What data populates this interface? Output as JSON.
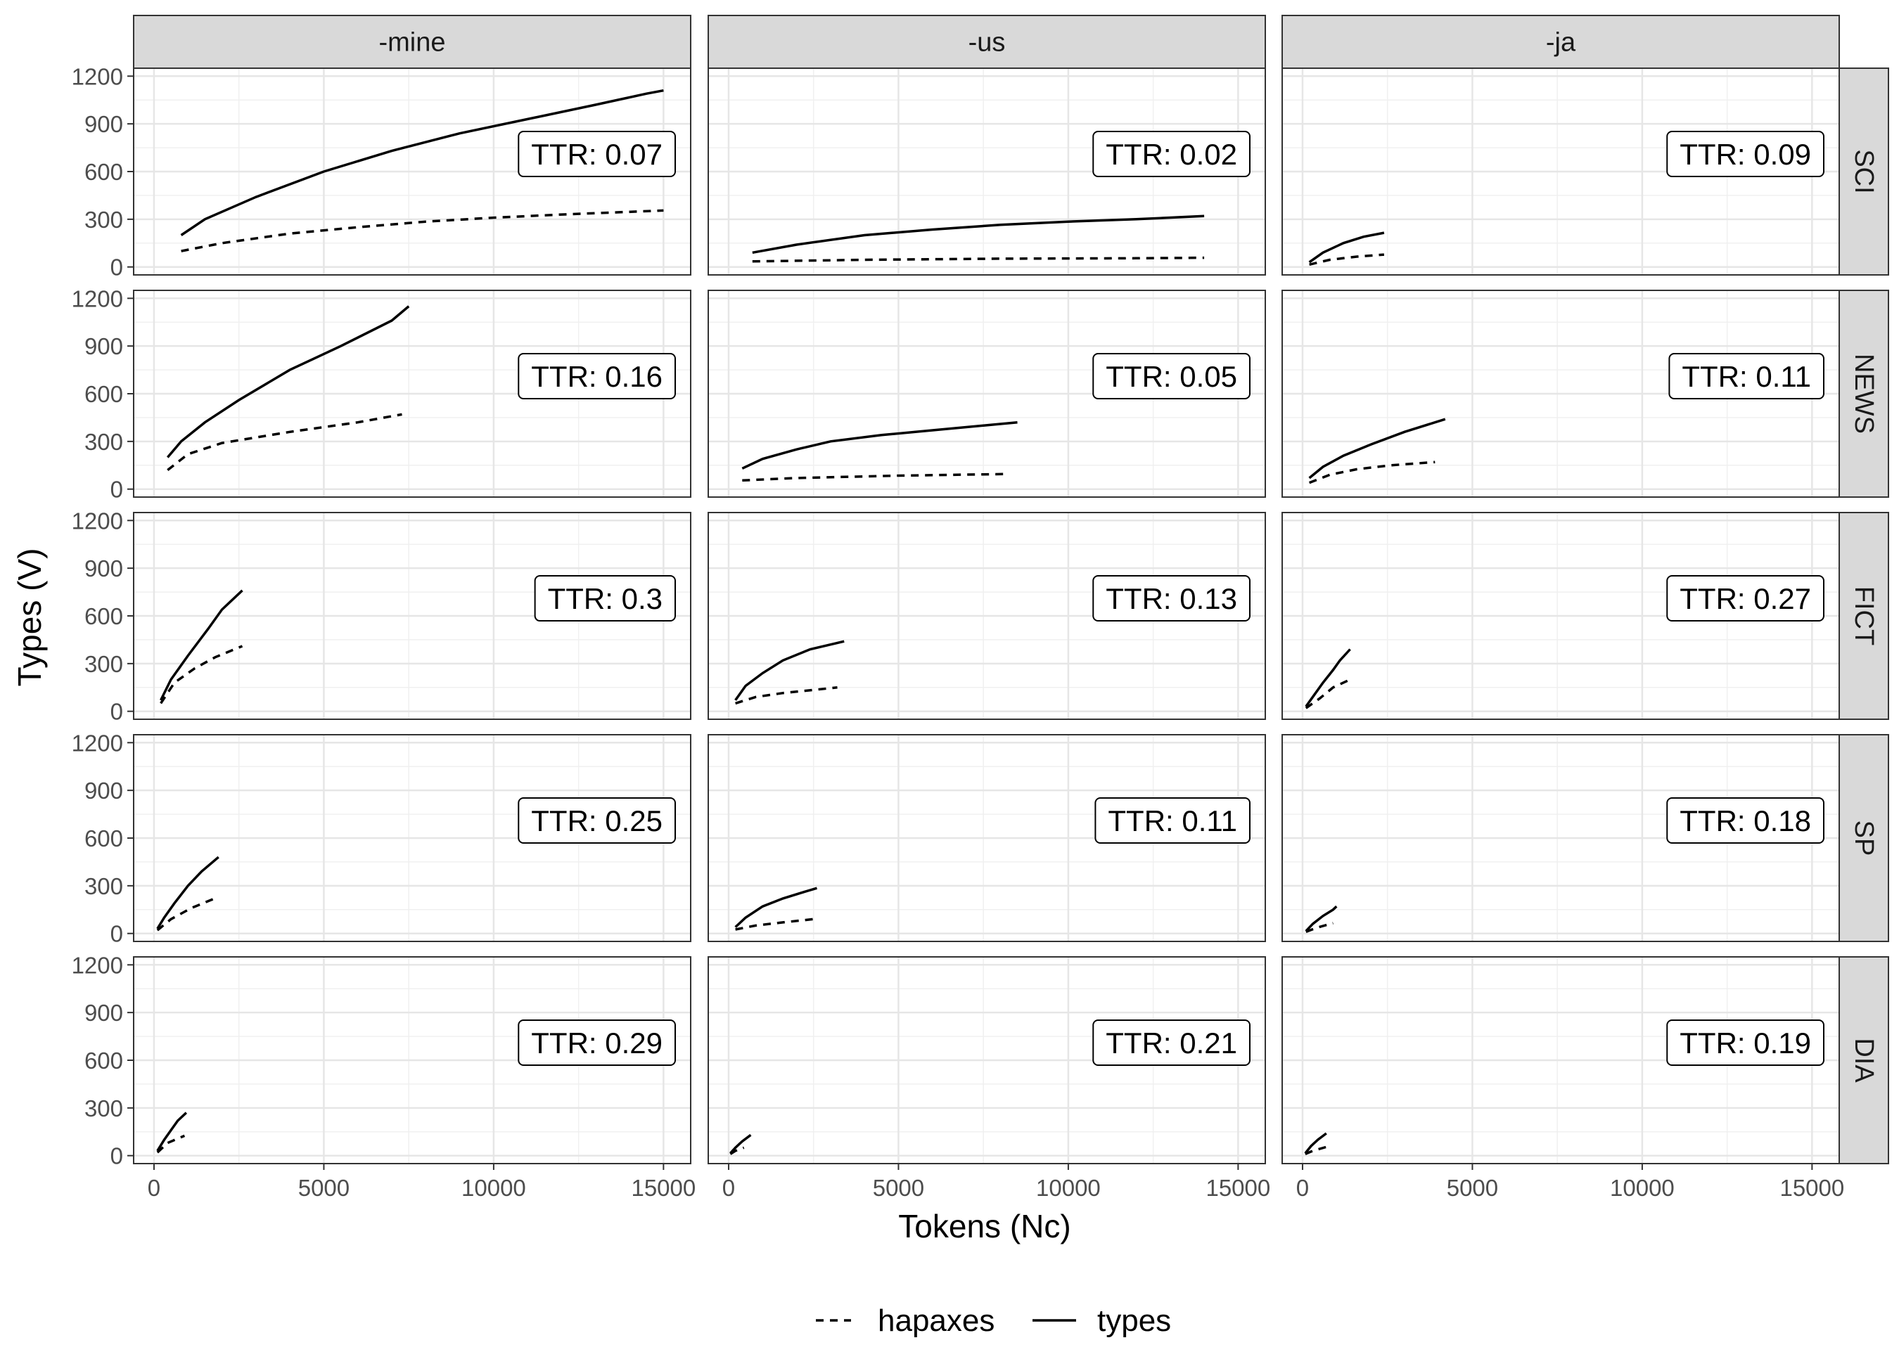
{
  "chart_data": {
    "type": "line",
    "facets": {
      "columns": [
        "-mine",
        "-us",
        "-ja"
      ],
      "rows": [
        "SCI",
        "NEWS",
        "FICT",
        "SP",
        "DIA"
      ]
    },
    "xlabel": "Tokens (Nc)",
    "ylabel": "Types (V)",
    "xlim": [
      -600,
      15800
    ],
    "ylim": [
      -50,
      1250
    ],
    "xticks": [
      0,
      5000,
      10000,
      15000
    ],
    "yticks": [
      0,
      300,
      600,
      900,
      1200
    ],
    "xtick_labels": [
      "0",
      "5000",
      "10000",
      "15000"
    ],
    "ytick_labels": [
      "0",
      "300",
      "600",
      "900",
      "1200"
    ],
    "grid": true,
    "legend": {
      "position": "bottom",
      "entries": [
        {
          "label": "hapaxes",
          "linetype": "dashed"
        },
        {
          "label": "types",
          "linetype": "solid"
        }
      ]
    },
    "series_names": [
      "hapaxes",
      "types"
    ],
    "panels": [
      {
        "col": "-mine",
        "row": "SCI",
        "ttr_label": "TTR: 0.07",
        "types": [
          [
            800,
            200
          ],
          [
            1500,
            300
          ],
          [
            3000,
            440
          ],
          [
            5000,
            600
          ],
          [
            7000,
            730
          ],
          [
            9000,
            840
          ],
          [
            11000,
            930
          ],
          [
            13000,
            1020
          ],
          [
            14500,
            1090
          ],
          [
            15000,
            1110
          ]
        ],
        "hapaxes": [
          [
            800,
            100
          ],
          [
            2000,
            150
          ],
          [
            4000,
            210
          ],
          [
            6000,
            250
          ],
          [
            8000,
            285
          ],
          [
            10000,
            310
          ],
          [
            12000,
            330
          ],
          [
            15000,
            355
          ]
        ]
      },
      {
        "col": "-us",
        "row": "SCI",
        "ttr_label": "TTR: 0.02",
        "types": [
          [
            700,
            90
          ],
          [
            2000,
            140
          ],
          [
            4000,
            200
          ],
          [
            6000,
            235
          ],
          [
            8000,
            265
          ],
          [
            10000,
            285
          ],
          [
            12000,
            300
          ],
          [
            14000,
            320
          ]
        ],
        "hapaxes": [
          [
            700,
            35
          ],
          [
            4000,
            45
          ],
          [
            8000,
            52
          ],
          [
            12000,
            55
          ],
          [
            14000,
            58
          ]
        ]
      },
      {
        "col": "-ja",
        "row": "SCI",
        "ttr_label": "TTR: 0.09",
        "types": [
          [
            200,
            30
          ],
          [
            600,
            90
          ],
          [
            1200,
            150
          ],
          [
            1800,
            190
          ],
          [
            2400,
            215
          ]
        ],
        "hapaxes": [
          [
            200,
            15
          ],
          [
            800,
            45
          ],
          [
            1600,
            65
          ],
          [
            2400,
            78
          ]
        ]
      },
      {
        "col": "-mine",
        "row": "NEWS",
        "ttr_label": "TTR: 0.16",
        "types": [
          [
            400,
            200
          ],
          [
            800,
            300
          ],
          [
            1500,
            420
          ],
          [
            2500,
            560
          ],
          [
            4000,
            750
          ],
          [
            5500,
            900
          ],
          [
            7000,
            1060
          ],
          [
            7500,
            1150
          ]
        ],
        "hapaxes": [
          [
            400,
            120
          ],
          [
            1000,
            220
          ],
          [
            2000,
            290
          ],
          [
            4000,
            360
          ],
          [
            6000,
            420
          ],
          [
            7300,
            470
          ]
        ]
      },
      {
        "col": "-us",
        "row": "NEWS",
        "ttr_label": "TTR: 0.05",
        "types": [
          [
            400,
            130
          ],
          [
            1000,
            190
          ],
          [
            2000,
            250
          ],
          [
            3000,
            300
          ],
          [
            4500,
            340
          ],
          [
            6000,
            370
          ],
          [
            7500,
            400
          ],
          [
            8500,
            420
          ]
        ],
        "hapaxes": [
          [
            400,
            55
          ],
          [
            2000,
            70
          ],
          [
            5000,
            85
          ],
          [
            8200,
            95
          ]
        ]
      },
      {
        "col": "-ja",
        "row": "NEWS",
        "ttr_label": "TTR: 0.11",
        "types": [
          [
            200,
            70
          ],
          [
            600,
            140
          ],
          [
            1200,
            210
          ],
          [
            2000,
            280
          ],
          [
            3000,
            360
          ],
          [
            4200,
            440
          ]
        ],
        "hapaxes": [
          [
            200,
            40
          ],
          [
            800,
            90
          ],
          [
            1600,
            125
          ],
          [
            2600,
            150
          ],
          [
            3900,
            170
          ]
        ]
      },
      {
        "col": "-mine",
        "row": "FICT",
        "ttr_label": "TTR: 0.3",
        "types": [
          [
            200,
            70
          ],
          [
            500,
            200
          ],
          [
            1000,
            350
          ],
          [
            1600,
            520
          ],
          [
            2000,
            640
          ],
          [
            2600,
            760
          ]
        ],
        "hapaxes": [
          [
            200,
            50
          ],
          [
            600,
            180
          ],
          [
            1200,
            270
          ],
          [
            1800,
            340
          ],
          [
            2600,
            410
          ]
        ]
      },
      {
        "col": "-us",
        "row": "FICT",
        "ttr_label": "TTR: 0.13",
        "types": [
          [
            200,
            70
          ],
          [
            500,
            160
          ],
          [
            1000,
            240
          ],
          [
            1600,
            320
          ],
          [
            2400,
            390
          ],
          [
            3400,
            440
          ]
        ],
        "hapaxes": [
          [
            200,
            50
          ],
          [
            800,
            90
          ],
          [
            1600,
            115
          ],
          [
            3200,
            150
          ]
        ]
      },
      {
        "col": "-ja",
        "row": "FICT",
        "ttr_label": "TTR: 0.27",
        "types": [
          [
            100,
            30
          ],
          [
            300,
            90
          ],
          [
            600,
            180
          ],
          [
            900,
            260
          ],
          [
            1100,
            320
          ],
          [
            1400,
            390
          ]
        ],
        "hapaxes": [
          [
            100,
            20
          ],
          [
            500,
            80
          ],
          [
            900,
            150
          ],
          [
            1400,
            200
          ]
        ]
      },
      {
        "col": "-mine",
        "row": "SP",
        "ttr_label": "TTR: 0.25",
        "types": [
          [
            100,
            30
          ],
          [
            300,
            100
          ],
          [
            600,
            190
          ],
          [
            1000,
            300
          ],
          [
            1400,
            390
          ],
          [
            1900,
            480
          ]
        ],
        "hapaxes": [
          [
            100,
            20
          ],
          [
            500,
            90
          ],
          [
            1100,
            160
          ],
          [
            1900,
            230
          ]
        ]
      },
      {
        "col": "-us",
        "row": "SP",
        "ttr_label": "TTR: 0.11",
        "types": [
          [
            200,
            40
          ],
          [
            500,
            100
          ],
          [
            1000,
            170
          ],
          [
            1600,
            220
          ],
          [
            2200,
            260
          ],
          [
            2600,
            285
          ]
        ],
        "hapaxes": [
          [
            200,
            25
          ],
          [
            800,
            50
          ],
          [
            1600,
            70
          ],
          [
            2500,
            90
          ]
        ]
      },
      {
        "col": "-ja",
        "row": "SP",
        "ttr_label": "TTR: 0.18",
        "types": [
          [
            100,
            15
          ],
          [
            300,
            60
          ],
          [
            600,
            110
          ],
          [
            900,
            150
          ],
          [
            1000,
            170
          ]
        ],
        "hapaxes": [
          [
            100,
            10
          ],
          [
            400,
            35
          ],
          [
            900,
            65
          ]
        ]
      },
      {
        "col": "-mine",
        "row": "DIA",
        "ttr_label": "TTR: 0.29",
        "types": [
          [
            100,
            30
          ],
          [
            300,
            100
          ],
          [
            500,
            160
          ],
          [
            700,
            220
          ],
          [
            950,
            270
          ]
        ],
        "hapaxes": [
          [
            100,
            20
          ],
          [
            400,
            80
          ],
          [
            900,
            125
          ]
        ]
      },
      {
        "col": "-us",
        "row": "DIA",
        "ttr_label": "TTR: 0.21",
        "types": [
          [
            50,
            15
          ],
          [
            200,
            50
          ],
          [
            400,
            90
          ],
          [
            650,
            130
          ]
        ],
        "hapaxes": [
          [
            50,
            10
          ],
          [
            200,
            30
          ],
          [
            450,
            50
          ]
        ]
      },
      {
        "col": "-ja",
        "row": "DIA",
        "ttr_label": "TTR: 0.19",
        "types": [
          [
            80,
            15
          ],
          [
            250,
            60
          ],
          [
            450,
            100
          ],
          [
            700,
            140
          ]
        ],
        "hapaxes": [
          [
            80,
            10
          ],
          [
            300,
            30
          ],
          [
            700,
            55
          ]
        ]
      }
    ]
  }
}
